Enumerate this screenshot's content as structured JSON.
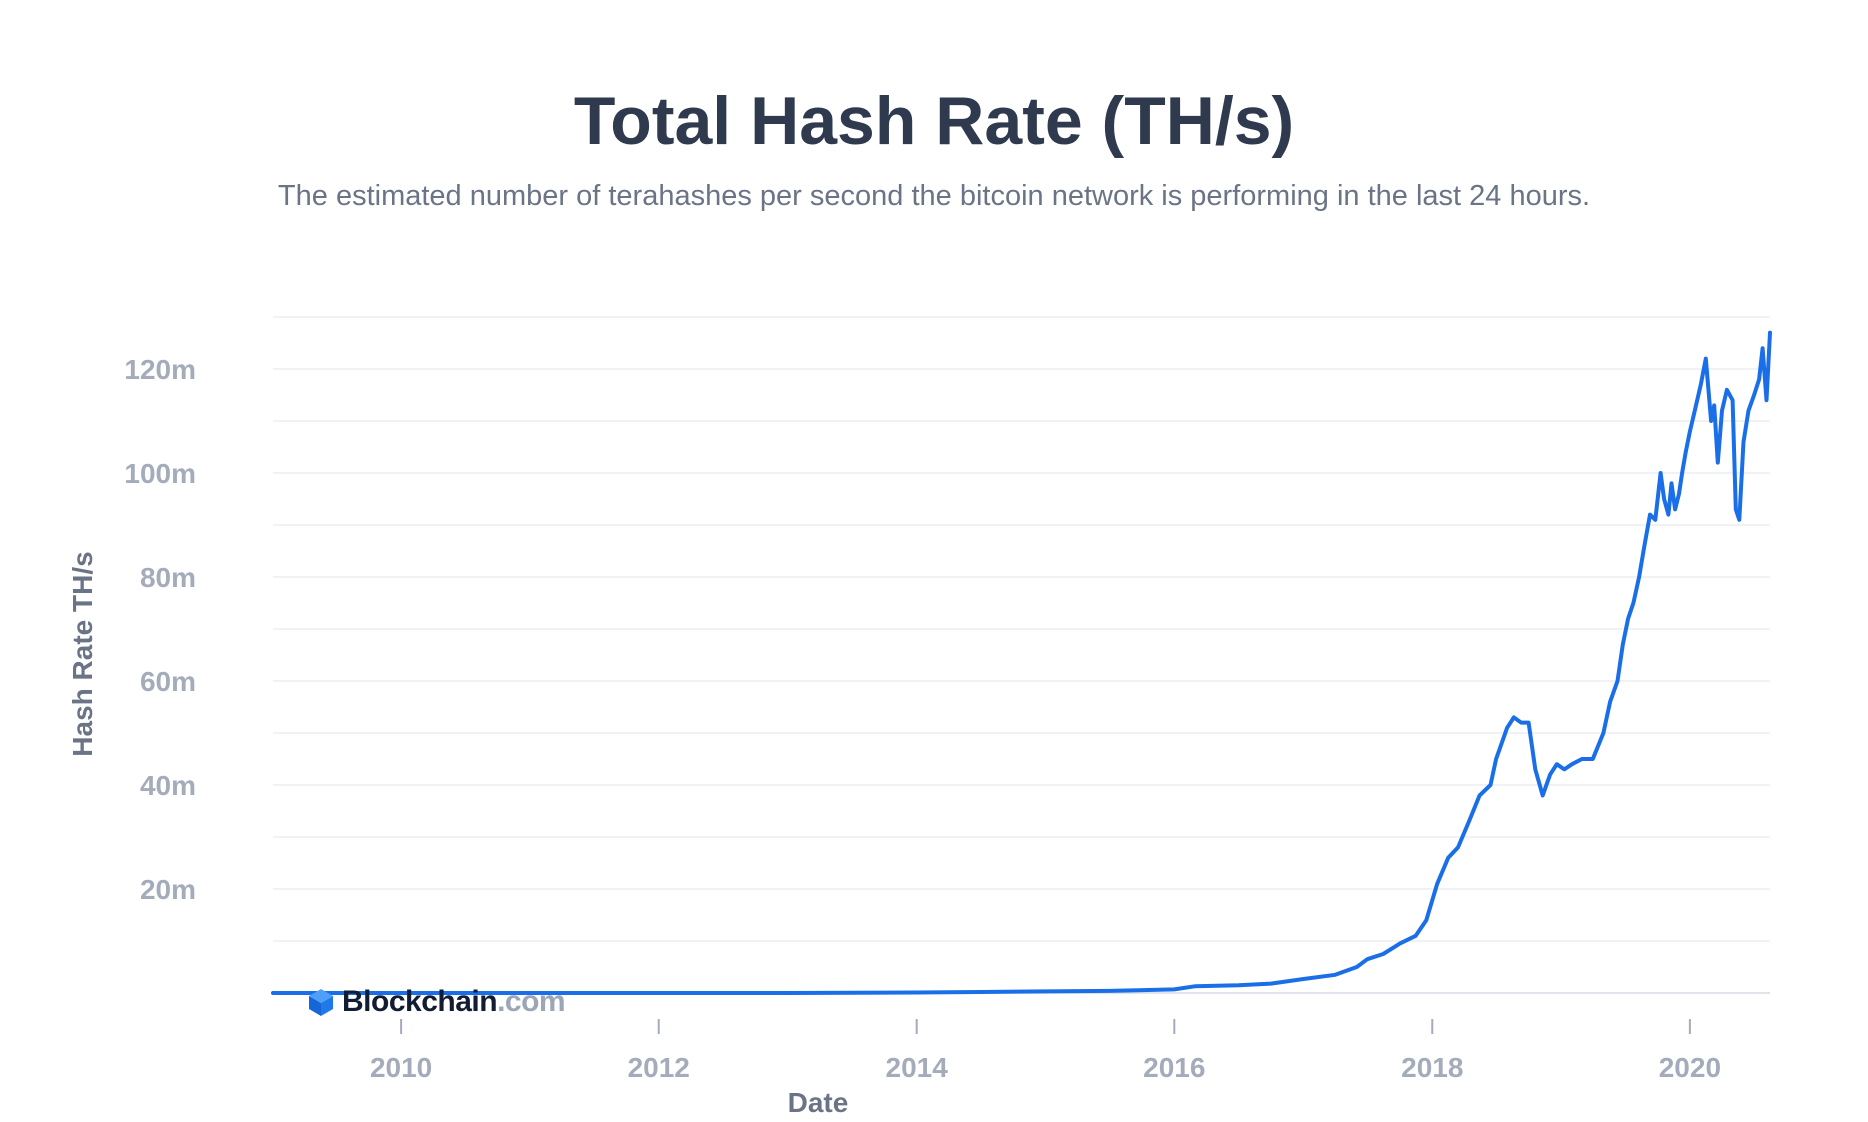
{
  "chart_data": {
    "type": "line",
    "title": "Total Hash Rate (TH/s)",
    "subtitle": "The estimated number of terahashes per second the bitcoin network is performing in the last 24 hours.",
    "xlabel": "Date",
    "ylabel": "Hash Rate TH/s",
    "x_ticks": [
      "2010",
      "2012",
      "2014",
      "2016",
      "2018",
      "2020"
    ],
    "y_ticks": [
      "20m",
      "40m",
      "60m",
      "80m",
      "100m",
      "120m"
    ],
    "xlim": [
      "2009-01-03",
      "2020-08-15"
    ],
    "ylim": [
      0,
      130000000
    ],
    "grid": true,
    "legend": "none",
    "line_color": "#1a6fe8",
    "series": [
      {
        "x": [
          "2009-01-03",
          "2010-01-01",
          "2011-01-01",
          "2012-01-01",
          "2013-01-01",
          "2014-01-01",
          "2014-07-01",
          "2015-01-01",
          "2015-07-01",
          "2016-01-01",
          "2016-03-01",
          "2016-07-01",
          "2016-10-01",
          "2017-01-01",
          "2017-04-01",
          "2017-06-01",
          "2017-07-01",
          "2017-08-15",
          "2017-10-01",
          "2017-11-15",
          "2017-12-15",
          "2018-01-15",
          "2018-02-15",
          "2018-03-15",
          "2018-04-15",
          "2018-05-15",
          "2018-06-15",
          "2018-07-01",
          "2018-08-01",
          "2018-08-20",
          "2018-09-10",
          "2018-10-01",
          "2018-10-20",
          "2018-11-10",
          "2018-12-01",
          "2018-12-20",
          "2019-01-10",
          "2019-02-01",
          "2019-03-01",
          "2019-04-01",
          "2019-05-01",
          "2019-05-20",
          "2019-06-10",
          "2019-06-25",
          "2019-07-10",
          "2019-07-25",
          "2019-08-10",
          "2019-08-25",
          "2019-09-10",
          "2019-09-25",
          "2019-10-10",
          "2019-10-20",
          "2019-11-01",
          "2019-11-10",
          "2019-11-20",
          "2019-12-01",
          "2019-12-10",
          "2019-12-20",
          "2020-01-01",
          "2020-01-15",
          "2020-02-01",
          "2020-02-15",
          "2020-03-01",
          "2020-03-10",
          "2020-03-20",
          "2020-04-01",
          "2020-04-15",
          "2020-05-01",
          "2020-05-10",
          "2020-05-20",
          "2020-06-01",
          "2020-06-15",
          "2020-07-01",
          "2020-07-15",
          "2020-07-25",
          "2020-08-05",
          "2020-08-15"
        ],
        "y": [
          0,
          0,
          0,
          0,
          0,
          100000,
          200000,
          300000,
          400000,
          700000,
          1300000,
          1500000,
          1800000,
          2700000,
          3500000,
          5000000,
          6500000,
          7500000,
          9500000,
          11000000,
          14000000,
          21000000,
          26000000,
          28000000,
          33000000,
          38000000,
          40000000,
          45000000,
          51000000,
          53000000,
          52000000,
          52000000,
          43000000,
          38000000,
          42000000,
          44000000,
          43000000,
          44000000,
          45000000,
          45000000,
          50000000,
          56000000,
          60000000,
          67000000,
          72000000,
          75000000,
          80000000,
          86000000,
          92000000,
          91000000,
          100000000,
          95000000,
          92000000,
          98000000,
          93000000,
          96000000,
          100000000,
          104000000,
          108000000,
          112000000,
          117000000,
          122000000,
          110000000,
          113000000,
          102000000,
          112000000,
          116000000,
          114000000,
          93000000,
          91000000,
          106000000,
          112000000,
          115000000,
          118000000,
          124000000,
          114000000,
          127000000
        ]
      }
    ]
  },
  "branding": {
    "logo_word": "Blockchain",
    "logo_suffix": ".com",
    "logo_icon": "blockchain-cube-icon"
  }
}
